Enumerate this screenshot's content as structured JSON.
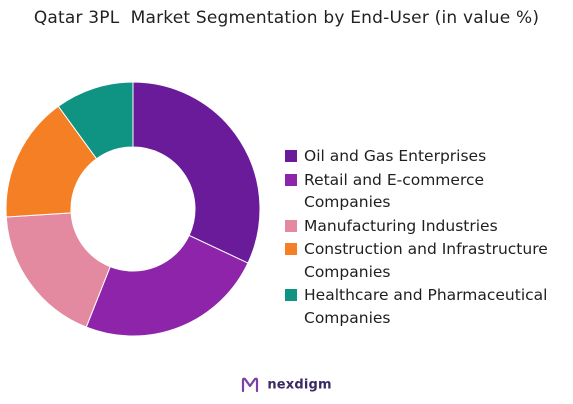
{
  "title": "Qatar 3PL  Market Segmentation by End-User (in value %)",
  "chart_data": {
    "type": "pie",
    "style": "donut",
    "title": "Qatar 3PL  Market Segmentation by End-User (in value %)",
    "categories": [
      "Oil and Gas Enterprises",
      "Retail and E-commerce Companies",
      "Manufacturing Industries",
      "Construction and Infrastructure Companies",
      "Healthcare and Pharmaceutical Companies"
    ],
    "values": [
      32,
      24,
      18,
      16,
      10
    ],
    "unit": "%",
    "colors": [
      "#6a1b9a",
      "#8e24aa",
      "#e48aa0",
      "#f57f24",
      "#0f9484"
    ],
    "legend_position": "right"
  },
  "legend": [
    {
      "label": "Oil and Gas Enterprises",
      "color": "#6a1b9a"
    },
    {
      "label": "Retail and E-commerce Companies",
      "color": "#8e24aa"
    },
    {
      "label": "Manufacturing Industries",
      "color": "#e48aa0"
    },
    {
      "label": "Construction and Infrastructure Companies",
      "color": "#f57f24"
    },
    {
      "label": "Healthcare and Pharmaceutical Companies",
      "color": "#0f9484"
    }
  ],
  "brand": {
    "name": "nexdigm",
    "icon": "nexdigm-logo-icon",
    "color": "#3a2a63"
  }
}
